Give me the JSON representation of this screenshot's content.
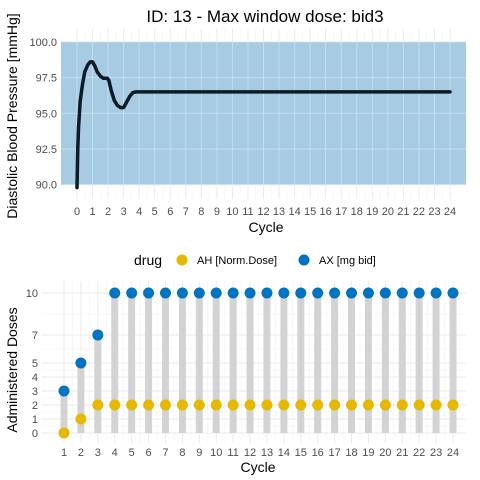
{
  "chart_data": [
    {
      "type": "line",
      "title": "ID: 13 -  Max window dose: bid3",
      "xlabel": "Cycle",
      "ylabel": "Diastolic Blood Pressure [mmHg]",
      "xlim": [
        0,
        24
      ],
      "ylim": [
        89.7,
        100.2
      ],
      "x_ticks": [
        "0",
        "1",
        "2",
        "3",
        "4",
        "5",
        "6",
        "7",
        "8",
        "9",
        "10",
        "11",
        "12",
        "13",
        "14",
        "15",
        "16",
        "17",
        "18",
        "19",
        "20",
        "21",
        "22",
        "23",
        "24"
      ],
      "y_ticks": [
        "90.0",
        "92.5",
        "95.0",
        "97.5",
        "100.0"
      ],
      "band": {
        "from": 90,
        "to": 100,
        "color": "#A6CBE3"
      },
      "line_color": "#0E1A26",
      "grid": true,
      "series": [
        {
          "x": [
            0,
            0.05,
            0.1,
            0.2,
            0.35,
            0.5,
            0.7,
            0.85,
            1.0,
            1.15,
            1.3,
            1.5,
            1.7,
            1.85,
            1.95,
            2.05,
            2.2,
            2.4,
            2.6,
            2.8,
            3.0,
            3.2,
            3.4,
            3.6,
            3.8,
            4.0,
            4.5,
            5,
            6,
            8,
            10,
            12,
            14,
            16,
            18,
            20,
            22,
            24
          ],
          "y": [
            89.8,
            92.5,
            94.0,
            95.8,
            97.0,
            97.9,
            98.4,
            98.6,
            98.6,
            98.3,
            97.9,
            97.6,
            97.45,
            97.45,
            97.45,
            97.3,
            96.6,
            95.9,
            95.55,
            95.4,
            95.4,
            95.8,
            96.2,
            96.45,
            96.5,
            96.5,
            96.5,
            96.5,
            96.5,
            96.5,
            96.5,
            96.5,
            96.5,
            96.5,
            96.5,
            96.5,
            96.5,
            96.5
          ]
        }
      ]
    },
    {
      "type": "scatter",
      "xlabel": "Cycle",
      "ylabel": "Administered Doses",
      "legend_title": "drug",
      "legend_position": "top",
      "xlim": [
        1,
        24
      ],
      "ylim": [
        0,
        10
      ],
      "x_ticks": [
        "1",
        "2",
        "3",
        "4",
        "5",
        "6",
        "7",
        "8",
        "9",
        "10",
        "11",
        "12",
        "13",
        "14",
        "15",
        "16",
        "17",
        "18",
        "19",
        "20",
        "21",
        "22",
        "23",
        "24"
      ],
      "y_ticks": [
        "0",
        "1",
        "2",
        "3",
        "4",
        "5",
        "7",
        "10"
      ],
      "y_tick_values": [
        0,
        1,
        2,
        3,
        4,
        5,
        7,
        10
      ],
      "grid": true,
      "x": [
        1,
        2,
        3,
        4,
        5,
        6,
        7,
        8,
        9,
        10,
        11,
        12,
        13,
        14,
        15,
        16,
        17,
        18,
        19,
        20,
        21,
        22,
        23,
        24
      ],
      "series": [
        {
          "name": "AH [Norm.Dose]",
          "color": "#E7B800",
          "values": [
            0,
            1,
            2,
            2,
            2,
            2,
            2,
            2,
            2,
            2,
            2,
            2,
            2,
            2,
            2,
            2,
            2,
            2,
            2,
            2,
            2,
            2,
            2,
            2
          ]
        },
        {
          "name": "AX [mg bid]",
          "color": "#0073C2",
          "values": [
            3,
            5,
            7,
            10,
            10,
            10,
            10,
            10,
            10,
            10,
            10,
            10,
            10,
            10,
            10,
            10,
            10,
            10,
            10,
            10,
            10,
            10,
            10,
            10
          ]
        }
      ]
    }
  ]
}
